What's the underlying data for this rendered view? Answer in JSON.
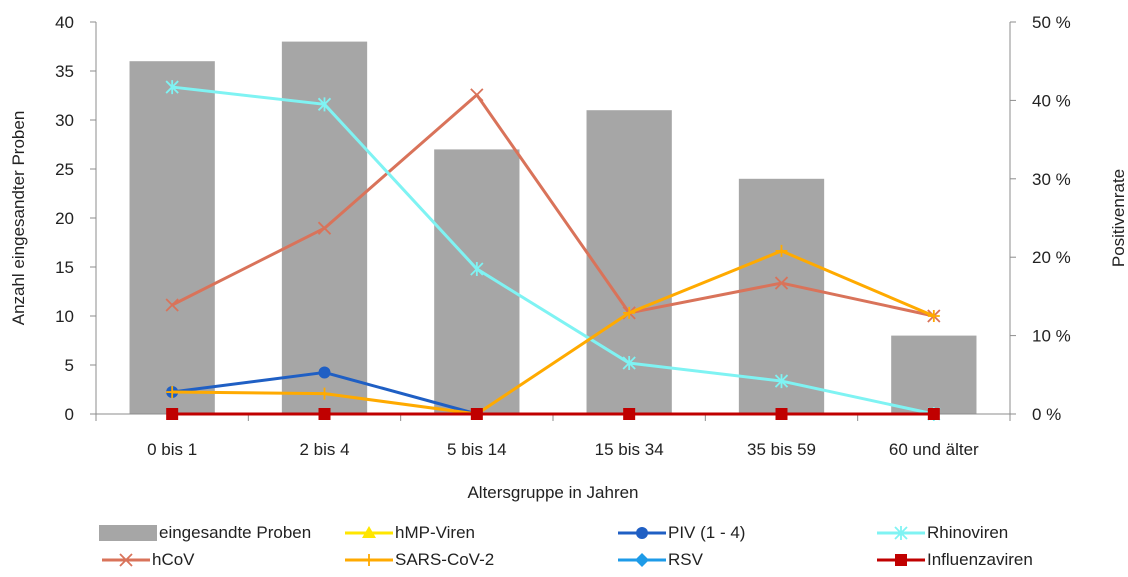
{
  "chart_data": {
    "type": "bar",
    "categories": [
      "0 bis 1",
      "2 bis 4",
      "5 bis 14",
      "15 bis 34",
      "35 bis 59",
      "60 und älter"
    ],
    "xlabel": "Altersgruppe in Jahren",
    "ylabel": "Anzahl eingesandter Proben",
    "y2label": "Positivenrate",
    "ylim": [
      0,
      40
    ],
    "yticks": [
      0,
      5,
      10,
      15,
      20,
      25,
      30,
      35,
      40
    ],
    "y2lim": [
      0,
      50
    ],
    "y2ticks": [
      0,
      10,
      20,
      30,
      40,
      50
    ],
    "y2tick_suffix": " %",
    "grid": false,
    "legend_position": "bottom",
    "bars": {
      "name": "eingesandte Proben",
      "color": "#a6a6a6",
      "values": [
        36,
        38,
        27,
        31,
        24,
        8
      ]
    },
    "series": [
      {
        "name": "hMP-Viren",
        "axis": "right",
        "color": "#ffe600",
        "marker": "triangle",
        "values": [
          null,
          null,
          null,
          null,
          null,
          null
        ]
      },
      {
        "name": "PIV (1 - 4)",
        "axis": "right",
        "color": "#1f5fc4",
        "marker": "circle",
        "values": [
          2.8,
          5.3,
          0,
          null,
          null,
          null
        ]
      },
      {
        "name": "Rhinoviren",
        "axis": "right",
        "color": "#7ff3f3",
        "marker": "asterisk",
        "values": [
          41.7,
          39.5,
          18.5,
          6.5,
          4.2,
          0
        ]
      },
      {
        "name": "hCoV",
        "axis": "right",
        "color": "#d9735a",
        "marker": "x",
        "values": [
          13.9,
          23.7,
          40.7,
          12.9,
          16.7,
          12.5
        ]
      },
      {
        "name": "SARS-CoV-2",
        "axis": "right",
        "color": "#ffaa00",
        "marker": "plus",
        "values": [
          2.8,
          2.6,
          0,
          12.9,
          20.8,
          12.5
        ]
      },
      {
        "name": "RSV",
        "axis": "right",
        "color": "#1e9be8",
        "marker": "diamond",
        "values": [
          null,
          null,
          null,
          null,
          null,
          null
        ]
      },
      {
        "name": "Influenzaviren",
        "axis": "right",
        "color": "#c00000",
        "marker": "square",
        "values": [
          0,
          0,
          0,
          0,
          0,
          0
        ]
      }
    ]
  }
}
